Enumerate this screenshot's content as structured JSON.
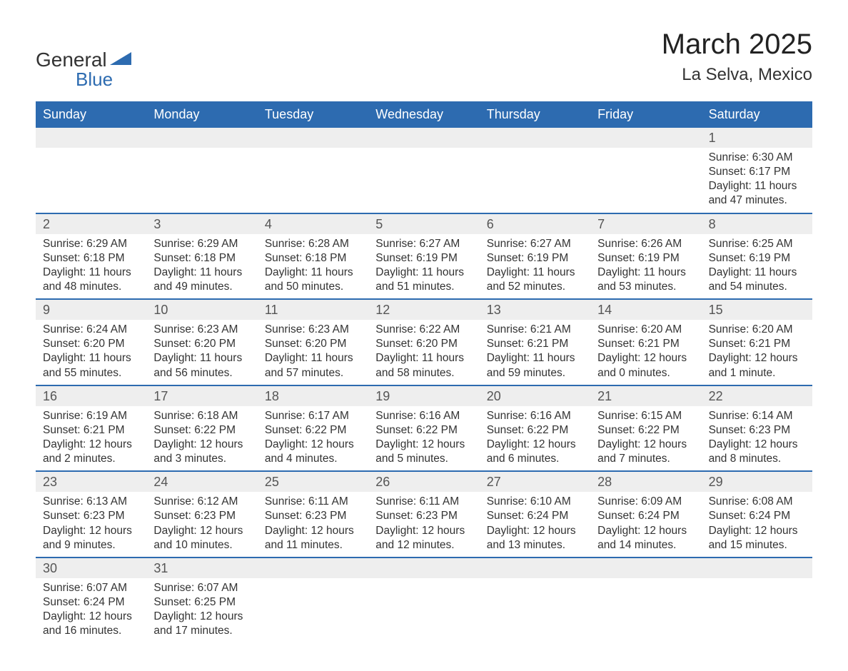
{
  "logo": {
    "word1": "General",
    "word2": "Blue",
    "accent_color": "#2d6bb0"
  },
  "title": "March 2025",
  "location": "La Selva, Mexico",
  "header_bg": "#2d6bb0",
  "header_fg": "#ffffff",
  "daynum_bg": "#eeeeee",
  "divider_color": "#2d6bb0",
  "text_color": "#333333",
  "day_headers": [
    "Sunday",
    "Monday",
    "Tuesday",
    "Wednesday",
    "Thursday",
    "Friday",
    "Saturday"
  ],
  "weeks": [
    {
      "nums": [
        "",
        "",
        "",
        "",
        "",
        "",
        "1"
      ],
      "cells": [
        null,
        null,
        null,
        null,
        null,
        null,
        {
          "sunrise": "Sunrise: 6:30 AM",
          "sunset": "Sunset: 6:17 PM",
          "daylight": "Daylight: 11 hours and 47 minutes."
        }
      ]
    },
    {
      "nums": [
        "2",
        "3",
        "4",
        "5",
        "6",
        "7",
        "8"
      ],
      "cells": [
        {
          "sunrise": "Sunrise: 6:29 AM",
          "sunset": "Sunset: 6:18 PM",
          "daylight": "Daylight: 11 hours and 48 minutes."
        },
        {
          "sunrise": "Sunrise: 6:29 AM",
          "sunset": "Sunset: 6:18 PM",
          "daylight": "Daylight: 11 hours and 49 minutes."
        },
        {
          "sunrise": "Sunrise: 6:28 AM",
          "sunset": "Sunset: 6:18 PM",
          "daylight": "Daylight: 11 hours and 50 minutes."
        },
        {
          "sunrise": "Sunrise: 6:27 AM",
          "sunset": "Sunset: 6:19 PM",
          "daylight": "Daylight: 11 hours and 51 minutes."
        },
        {
          "sunrise": "Sunrise: 6:27 AM",
          "sunset": "Sunset: 6:19 PM",
          "daylight": "Daylight: 11 hours and 52 minutes."
        },
        {
          "sunrise": "Sunrise: 6:26 AM",
          "sunset": "Sunset: 6:19 PM",
          "daylight": "Daylight: 11 hours and 53 minutes."
        },
        {
          "sunrise": "Sunrise: 6:25 AM",
          "sunset": "Sunset: 6:19 PM",
          "daylight": "Daylight: 11 hours and 54 minutes."
        }
      ]
    },
    {
      "nums": [
        "9",
        "10",
        "11",
        "12",
        "13",
        "14",
        "15"
      ],
      "cells": [
        {
          "sunrise": "Sunrise: 6:24 AM",
          "sunset": "Sunset: 6:20 PM",
          "daylight": "Daylight: 11 hours and 55 minutes."
        },
        {
          "sunrise": "Sunrise: 6:23 AM",
          "sunset": "Sunset: 6:20 PM",
          "daylight": "Daylight: 11 hours and 56 minutes."
        },
        {
          "sunrise": "Sunrise: 6:23 AM",
          "sunset": "Sunset: 6:20 PM",
          "daylight": "Daylight: 11 hours and 57 minutes."
        },
        {
          "sunrise": "Sunrise: 6:22 AM",
          "sunset": "Sunset: 6:20 PM",
          "daylight": "Daylight: 11 hours and 58 minutes."
        },
        {
          "sunrise": "Sunrise: 6:21 AM",
          "sunset": "Sunset: 6:21 PM",
          "daylight": "Daylight: 11 hours and 59 minutes."
        },
        {
          "sunrise": "Sunrise: 6:20 AM",
          "sunset": "Sunset: 6:21 PM",
          "daylight": "Daylight: 12 hours and 0 minutes."
        },
        {
          "sunrise": "Sunrise: 6:20 AM",
          "sunset": "Sunset: 6:21 PM",
          "daylight": "Daylight: 12 hours and 1 minute."
        }
      ]
    },
    {
      "nums": [
        "16",
        "17",
        "18",
        "19",
        "20",
        "21",
        "22"
      ],
      "cells": [
        {
          "sunrise": "Sunrise: 6:19 AM",
          "sunset": "Sunset: 6:21 PM",
          "daylight": "Daylight: 12 hours and 2 minutes."
        },
        {
          "sunrise": "Sunrise: 6:18 AM",
          "sunset": "Sunset: 6:22 PM",
          "daylight": "Daylight: 12 hours and 3 minutes."
        },
        {
          "sunrise": "Sunrise: 6:17 AM",
          "sunset": "Sunset: 6:22 PM",
          "daylight": "Daylight: 12 hours and 4 minutes."
        },
        {
          "sunrise": "Sunrise: 6:16 AM",
          "sunset": "Sunset: 6:22 PM",
          "daylight": "Daylight: 12 hours and 5 minutes."
        },
        {
          "sunrise": "Sunrise: 6:16 AM",
          "sunset": "Sunset: 6:22 PM",
          "daylight": "Daylight: 12 hours and 6 minutes."
        },
        {
          "sunrise": "Sunrise: 6:15 AM",
          "sunset": "Sunset: 6:22 PM",
          "daylight": "Daylight: 12 hours and 7 minutes."
        },
        {
          "sunrise": "Sunrise: 6:14 AM",
          "sunset": "Sunset: 6:23 PM",
          "daylight": "Daylight: 12 hours and 8 minutes."
        }
      ]
    },
    {
      "nums": [
        "23",
        "24",
        "25",
        "26",
        "27",
        "28",
        "29"
      ],
      "cells": [
        {
          "sunrise": "Sunrise: 6:13 AM",
          "sunset": "Sunset: 6:23 PM",
          "daylight": "Daylight: 12 hours and 9 minutes."
        },
        {
          "sunrise": "Sunrise: 6:12 AM",
          "sunset": "Sunset: 6:23 PM",
          "daylight": "Daylight: 12 hours and 10 minutes."
        },
        {
          "sunrise": "Sunrise: 6:11 AM",
          "sunset": "Sunset: 6:23 PM",
          "daylight": "Daylight: 12 hours and 11 minutes."
        },
        {
          "sunrise": "Sunrise: 6:11 AM",
          "sunset": "Sunset: 6:23 PM",
          "daylight": "Daylight: 12 hours and 12 minutes."
        },
        {
          "sunrise": "Sunrise: 6:10 AM",
          "sunset": "Sunset: 6:24 PM",
          "daylight": "Daylight: 12 hours and 13 minutes."
        },
        {
          "sunrise": "Sunrise: 6:09 AM",
          "sunset": "Sunset: 6:24 PM",
          "daylight": "Daylight: 12 hours and 14 minutes."
        },
        {
          "sunrise": "Sunrise: 6:08 AM",
          "sunset": "Sunset: 6:24 PM",
          "daylight": "Daylight: 12 hours and 15 minutes."
        }
      ]
    },
    {
      "nums": [
        "30",
        "31",
        "",
        "",
        "",
        "",
        ""
      ],
      "cells": [
        {
          "sunrise": "Sunrise: 6:07 AM",
          "sunset": "Sunset: 6:24 PM",
          "daylight": "Daylight: 12 hours and 16 minutes."
        },
        {
          "sunrise": "Sunrise: 6:07 AM",
          "sunset": "Sunset: 6:25 PM",
          "daylight": "Daylight: 12 hours and 17 minutes."
        },
        null,
        null,
        null,
        null,
        null
      ]
    }
  ]
}
